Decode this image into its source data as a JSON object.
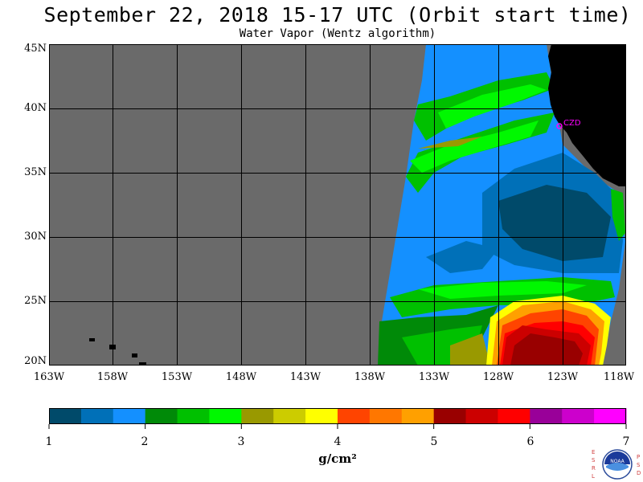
{
  "title": "September 22, 2018  15-17 UTC  (Orbit start time)",
  "subtitle": "Water Vapor (Wentz algorithm)",
  "map": {
    "lat_labels": [
      "45N",
      "40N",
      "35N",
      "30N",
      "25N",
      "20N"
    ],
    "lon_labels": [
      "163W",
      "158W",
      "153W",
      "148W",
      "143W",
      "138W",
      "133W",
      "128W",
      "123W",
      "118W"
    ],
    "lat_range": [
      20,
      45
    ],
    "lon_range": [
      -163,
      -118
    ],
    "station_label": "CZD",
    "colors": {
      "no_data": "#6a6a6a",
      "land": "#000000",
      "grid": "#000000",
      "station": "#ff00ff"
    }
  },
  "colorbar": {
    "tick_labels": [
      "1",
      "2",
      "3",
      "4",
      "5",
      "6",
      "7"
    ],
    "unit": "g/cm²",
    "colors": [
      "#004a6a",
      "#0070b8",
      "#1490ff",
      "#008a08",
      "#00c000",
      "#00f800",
      "#999900",
      "#cccc00",
      "#ffff00",
      "#ff4400",
      "#ff7700",
      "#ffa000",
      "#990000",
      "#cc0000",
      "#ff0000",
      "#990099",
      "#cc00cc",
      "#ff00ff"
    ]
  },
  "logo": {
    "left_letters": [
      "E",
      "S",
      "R",
      "L"
    ],
    "right_letters": [
      "P",
      "S",
      "D"
    ],
    "center": "NOAA"
  }
}
